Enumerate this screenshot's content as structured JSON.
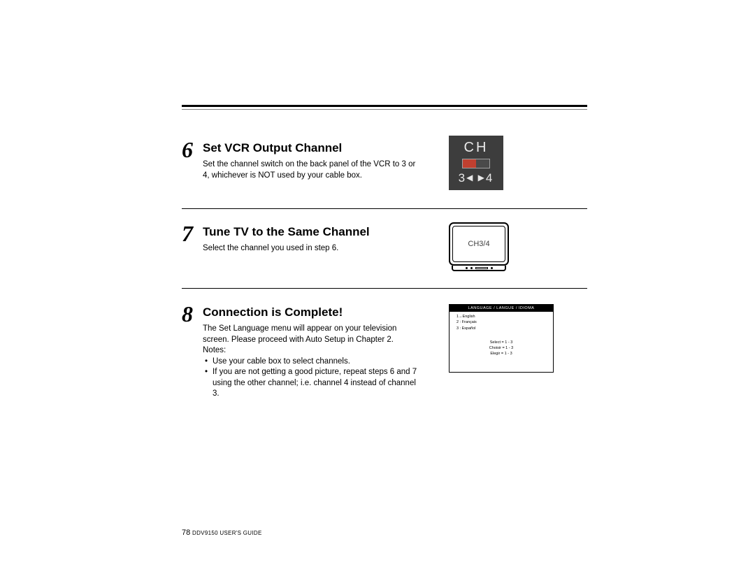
{
  "page": {
    "number": "78",
    "guide": "DDV9150 USER'S GUIDE"
  },
  "colors": {
    "page_bg": "#ffffff",
    "text": "#000000",
    "rule": "#000000",
    "switch_bg": "#3d3d3d",
    "switch_fg": "#e8e8e8",
    "switch_red": "#c04030",
    "menu_header_bg": "#000000",
    "menu_header_fg": "#ffffff"
  },
  "steps": [
    {
      "num": "6",
      "title": "Set VCR Output Channel",
      "body": "Set the channel switch on the back panel of the VCR to 3 or 4, whichever is NOT used by your cable box."
    },
    {
      "num": "7",
      "title": "Tune TV to the Same Channel",
      "body": "Select the channel you used in step 6."
    },
    {
      "num": "8",
      "title": "Connection is Complete!",
      "body": "The Set Language menu will appear on your television screen. Please proceed with Auto Setup in Chapter 2.",
      "notes_label": "Notes:",
      "notes": [
        "Use your cable box to select channels.",
        "If you are not getting a good picture, repeat steps 6 and 7 using the other channel; i.e. channel 4 instead of channel 3."
      ]
    }
  ],
  "switch_graphic": {
    "label": "CH",
    "left_num": "3",
    "right_num": "4",
    "arrows": "◀  ▶"
  },
  "tv_graphic": {
    "screen_text": "CH3/4"
  },
  "menu_graphic": {
    "header": "LANGUAGE / LANGUE / IDIOMA",
    "langs": [
      "1→English",
      "2 : Français",
      "3 : Español"
    ],
    "select": [
      "Select = 1 - 3",
      "Choisir = 1 - 3",
      "Elegir = 1 - 3"
    ]
  }
}
